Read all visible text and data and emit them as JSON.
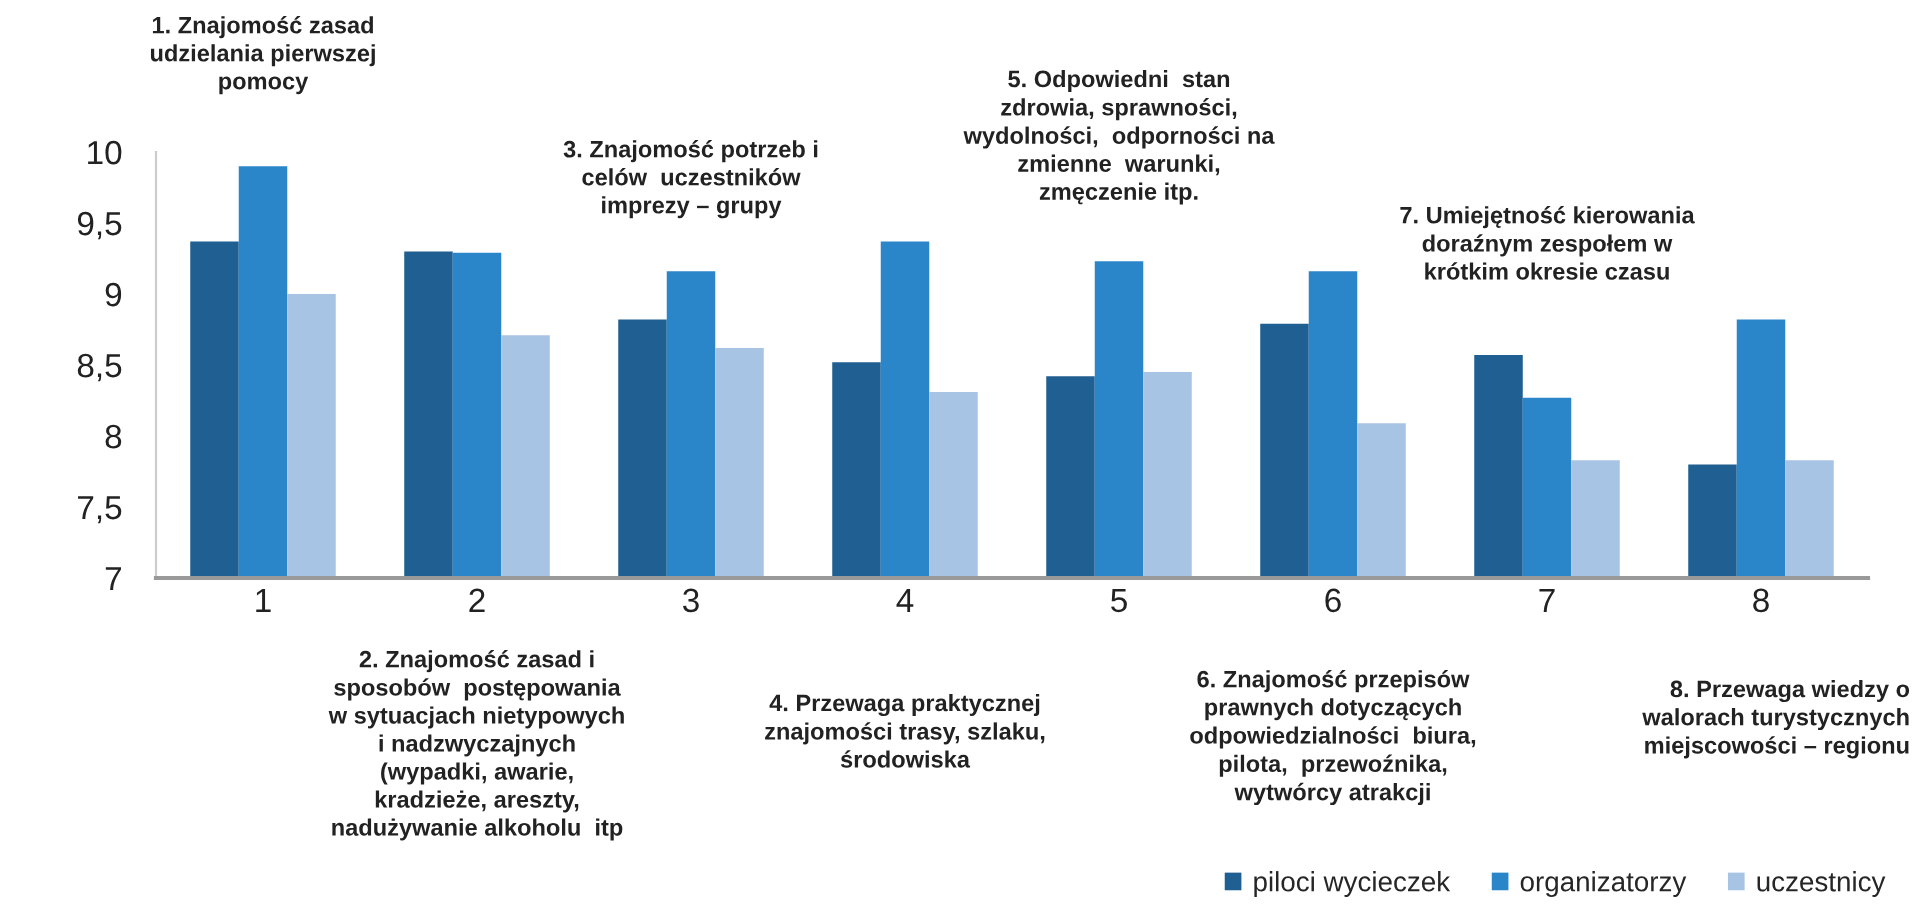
{
  "chart_data": {
    "type": "bar",
    "categories": [
      "1",
      "2",
      "3",
      "4",
      "5",
      "6",
      "7",
      "8"
    ],
    "series": [
      {
        "name": "piloci wycieczek",
        "color": "#1f5f91",
        "values": [
          9.37,
          9.3,
          8.82,
          8.52,
          8.42,
          8.79,
          8.57,
          7.8
        ]
      },
      {
        "name": "organizatorzy",
        "color": "#2a86c9",
        "values": [
          9.9,
          9.29,
          9.16,
          9.37,
          9.23,
          9.16,
          8.27,
          8.82
        ]
      },
      {
        "name": "uczestnicy",
        "color": "#a8c4e4",
        "values": [
          9.0,
          8.71,
          8.62,
          8.31,
          8.45,
          8.09,
          7.83,
          7.83
        ]
      }
    ],
    "ylim": [
      7,
      10
    ],
    "yticks": [
      7,
      {
        "value": 7.5,
        "label": "7,5"
      },
      8,
      {
        "value": 8.5,
        "label": "8,5"
      },
      9,
      {
        "value": 9.5,
        "label": "9,5"
      },
      10
    ],
    "annotations": [
      "1. Znajomość zasad\nudzielania pierwszej\npomocy",
      "2. Znajomość zasad i\nsposobów  postępowania\nw sytuacjach nietypowych\ni nadzwyczajnych\n(wypadki, awarie,\nkradzieże, areszty,\nnadużywanie alkoholu  itp",
      "3. Znajomość potrzeb i\ncelów  uczestników\nimprezy – grupy",
      "4. Przewaga praktycznej\nznajomości trasy, szlaku,\nśrodowiska",
      "5. Odpowiedni  stan\nzdrowia, sprawności,\nwydolności,  odporności na\nzmienne  warunki,\nzmęczenie itp.",
      "6. Znajomość przepisów\nprawnych dotyczących\nodpowiedzialności  biura,\npilota,  przewoźnika,\nwytwórcy atrakcji",
      "7. Umiejętność kierowania\ndoraźnym zespołem w\nkrótkim okresie czasu",
      "8. Przewaga wiedzy o\nwalorach turystycznych\nmiejscowości – regionu"
    ],
    "grid": false,
    "legend": "bottom right"
  }
}
